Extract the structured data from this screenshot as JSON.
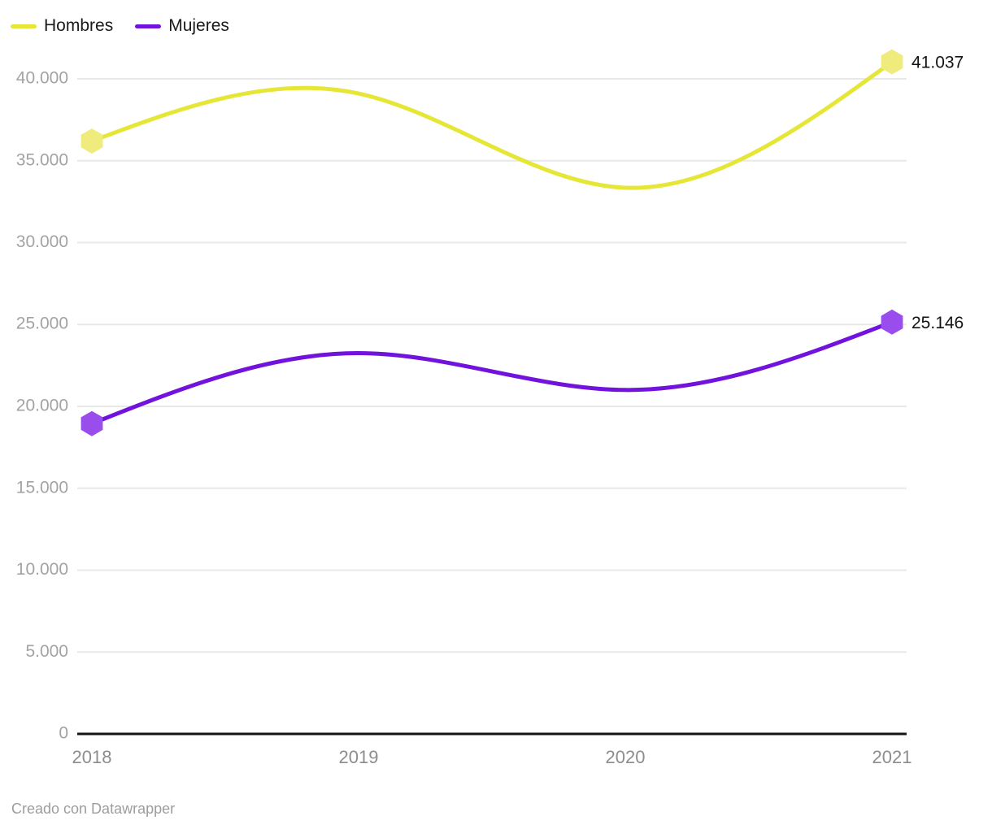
{
  "footer": {
    "credit": "Creado con Datawrapper"
  },
  "chart_data": {
    "type": "line",
    "curve": "natural",
    "title": "",
    "xlabel": "",
    "ylabel": "",
    "x": [
      "2018",
      "2019",
      "2020",
      "2021"
    ],
    "series": [
      {
        "name": "Hombres",
        "color": "#e5e636",
        "marker_color": "#efec7d",
        "values": [
          36200,
          39100,
          33350,
          41037
        ],
        "end_label": "41.037"
      },
      {
        "name": "Mujeres",
        "color": "#7113dc",
        "marker_color": "#9a4ded",
        "values": [
          18950,
          23250,
          21000,
          25146
        ],
        "end_label": "25.146"
      }
    ],
    "ylim": [
      0,
      42500
    ],
    "y_ticks": [
      {
        "value": 0,
        "label": "0"
      },
      {
        "value": 5000,
        "label": "5.000"
      },
      {
        "value": 10000,
        "label": "10.000"
      },
      {
        "value": 15000,
        "label": "15.000"
      },
      {
        "value": 20000,
        "label": "20.000"
      },
      {
        "value": 25000,
        "label": "25.000"
      },
      {
        "value": 30000,
        "label": "30.000"
      },
      {
        "value": 35000,
        "label": "35.000"
      },
      {
        "value": 40000,
        "label": "40.000"
      }
    ],
    "grid": "horizontal",
    "grid_color": "#e8e8e8",
    "axis_color": "#141414",
    "legend_position": "top-left"
  }
}
